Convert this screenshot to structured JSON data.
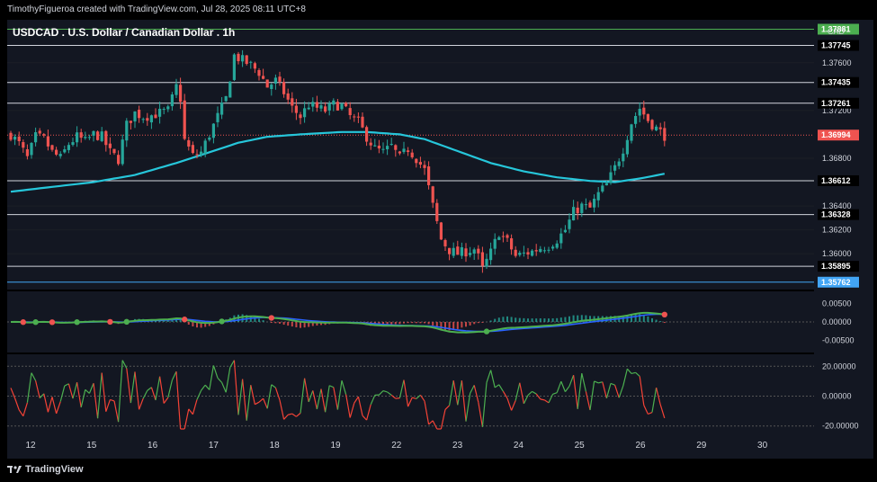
{
  "header": {
    "credit": "TimothyFigueroa created with TradingView.com, Jul 28, 2025 08:11 UTC+8"
  },
  "footer": {
    "brand": "TradingView"
  },
  "colors": {
    "background": "#000000",
    "pane": "#131722",
    "grid": "#1c1f26",
    "bull": "#26a69a",
    "bear": "#ef5350",
    "ema": "#26c6da",
    "macd_fast": "#4caf50",
    "macd_slow": "#2962ff",
    "rsi_up": "#4caf50",
    "rsi_down": "#f44336",
    "hline": "#d1d4dc",
    "green_line": "#4caf50",
    "blue_line": "#42a5f5"
  },
  "chart_data": {
    "type": "candlestick",
    "title": "USDCAD . U.S. Dollar / Canadian Dollar . 1h",
    "currency": "CAD",
    "price_ylim": [
      1.357,
      1.3796
    ],
    "price_ticks": [
      {
        "value": 1.376,
        "label": "1.37600"
      },
      {
        "value": 1.372,
        "label": "1.37200"
      },
      {
        "value": 1.368,
        "label": "1.36800"
      },
      {
        "value": 1.364,
        "label": "1.36400"
      },
      {
        "value": 1.362,
        "label": "1.36200"
      },
      {
        "value": 1.36,
        "label": "1.36000"
      }
    ],
    "x_ticks": [
      "12",
      "15",
      "16",
      "17",
      "18",
      "19",
      "22",
      "23",
      "24",
      "25",
      "26",
      "29",
      "30"
    ],
    "horizontal_lines": [
      {
        "value": 1.37881,
        "label": "1.37881",
        "style": "green"
      },
      {
        "value": 1.37745,
        "label": "1.37745",
        "style": "black"
      },
      {
        "value": 1.37435,
        "label": "1.37435",
        "style": "black"
      },
      {
        "value": 1.37261,
        "label": "1.37261",
        "style": "black"
      },
      {
        "value": 1.36612,
        "label": "1.36612",
        "style": "black"
      },
      {
        "value": 1.36328,
        "label": "1.36328",
        "style": "black"
      },
      {
        "value": 1.35895,
        "label": "1.35895",
        "style": "black"
      },
      {
        "value": 1.35762,
        "label": "1.35762",
        "style": "blue"
      }
    ],
    "current_price": {
      "value": 1.36994,
      "label": "1.36994"
    },
    "price_anchors": [
      [
        0,
        1.37
      ],
      [
        2,
        1.3692
      ],
      [
        4,
        1.368
      ],
      [
        6,
        1.3698
      ],
      [
        8,
        1.3696
      ],
      [
        10,
        1.3685
      ],
      [
        12,
        1.368
      ],
      [
        14,
        1.3692
      ],
      [
        16,
        1.3698
      ],
      [
        18,
        1.3694
      ],
      [
        20,
        1.37
      ],
      [
        22,
        1.3698
      ],
      [
        24,
        1.3685
      ],
      [
        26,
        1.3679
      ],
      [
        28,
        1.3708
      ],
      [
        30,
        1.3718
      ],
      [
        32,
        1.3715
      ],
      [
        34,
        1.3716
      ],
      [
        36,
        1.3718
      ],
      [
        38,
        1.372
      ],
      [
        40,
        1.374
      ],
      [
        41,
        1.373
      ],
      [
        42,
        1.3695
      ],
      [
        44,
        1.3682
      ],
      [
        46,
        1.3685
      ],
      [
        48,
        1.37
      ],
      [
        50,
        1.3715
      ],
      [
        52,
        1.373
      ],
      [
        54,
        1.3766
      ],
      [
        56,
        1.3762
      ],
      [
        58,
        1.3758
      ],
      [
        60,
        1.3752
      ],
      [
        62,
        1.374
      ],
      [
        64,
        1.3745
      ],
      [
        66,
        1.3735
      ],
      [
        68,
        1.3722
      ],
      [
        70,
        1.3715
      ],
      [
        72,
        1.3725
      ],
      [
        74,
        1.3722
      ],
      [
        76,
        1.372
      ],
      [
        78,
        1.3725
      ],
      [
        80,
        1.3724
      ],
      [
        82,
        1.3715
      ],
      [
        84,
        1.371
      ],
      [
        86,
        1.3698
      ],
      [
        88,
        1.3688
      ],
      [
        90,
        1.3685
      ],
      [
        92,
        1.369
      ],
      [
        94,
        1.368
      ],
      [
        96,
        1.3688
      ],
      [
        98,
        1.368
      ],
      [
        100,
        1.367
      ],
      [
        102,
        1.364
      ],
      [
        104,
        1.3612
      ],
      [
        106,
        1.3603
      ],
      [
        108,
        1.36
      ],
      [
        110,
        1.3602
      ],
      [
        112,
        1.3604
      ],
      [
        113,
        1.3597
      ],
      [
        114,
        1.3587
      ],
      [
        116,
        1.3601
      ],
      [
        118,
        1.3618
      ],
      [
        120,
        1.361
      ],
      [
        122,
        1.3598
      ],
      [
        124,
        1.36
      ],
      [
        126,
        1.3602
      ],
      [
        128,
        1.3605
      ],
      [
        130,
        1.3607
      ],
      [
        132,
        1.3612
      ],
      [
        134,
        1.362
      ],
      [
        136,
        1.3635
      ],
      [
        138,
        1.364
      ],
      [
        140,
        1.3638
      ],
      [
        142,
        1.365
      ],
      [
        144,
        1.3658
      ],
      [
        146,
        1.3672
      ],
      [
        148,
        1.3688
      ],
      [
        150,
        1.371
      ],
      [
        152,
        1.3722
      ],
      [
        154,
        1.3712
      ],
      [
        156,
        1.3705
      ],
      [
        158,
        1.3699
      ]
    ],
    "ema_anchors": [
      [
        0,
        1.3652
      ],
      [
        20,
        1.366
      ],
      [
        30,
        1.3666
      ],
      [
        40,
        1.3676
      ],
      [
        48,
        1.3685
      ],
      [
        55,
        1.3693
      ],
      [
        62,
        1.3698
      ],
      [
        70,
        1.37
      ],
      [
        80,
        1.3702
      ],
      [
        86,
        1.3702
      ],
      [
        94,
        1.37
      ],
      [
        100,
        1.3696
      ],
      [
        108,
        1.3686
      ],
      [
        116,
        1.3676
      ],
      [
        124,
        1.3669
      ],
      [
        132,
        1.3664
      ],
      [
        140,
        1.3661
      ],
      [
        146,
        1.366
      ],
      [
        152,
        1.3663
      ],
      [
        158,
        1.3667
      ]
    ],
    "macd": {
      "ticks": [
        {
          "value": 0.005,
          "label": "0.00500"
        },
        {
          "value": 0,
          "label": "0.00000"
        },
        {
          "value": -0.005,
          "label": "-0.00500"
        }
      ],
      "ylim": [
        -0.0082,
        0.0082
      ]
    },
    "rsi": {
      "ticks": [
        {
          "value": 20,
          "label": "20.00000"
        },
        {
          "value": 0,
          "label": "0.00000"
        },
        {
          "value": -20,
          "label": "-20.00000"
        }
      ],
      "ylim": [
        -25,
        28
      ]
    }
  }
}
